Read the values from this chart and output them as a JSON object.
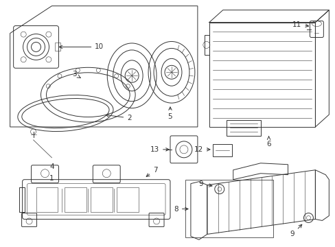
{
  "bg_color": "#ffffff",
  "fig_width": 4.89,
  "fig_height": 3.6,
  "dpi": 100,
  "line_color": "#333333",
  "light_color": "#888888",
  "lw": 0.7,
  "lw_thin": 0.4,
  "lw_thick": 1.0,
  "label_fontsize": 7.5
}
